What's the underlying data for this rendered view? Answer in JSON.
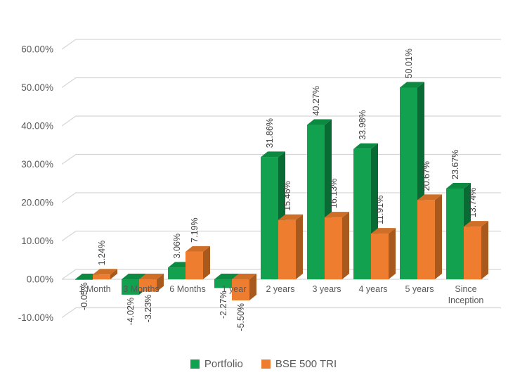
{
  "chart_data": {
    "type": "bar",
    "variant": "3d-clustered-column",
    "title": "",
    "xlabel": "",
    "ylabel": "",
    "categories": [
      "1 Month",
      "3 Months",
      "6 Months",
      "1 year",
      "2 years",
      "3 years",
      "4 years",
      "5 years",
      "Since Inception"
    ],
    "category_label_lines": [
      [
        "1 Month"
      ],
      [
        "3 Months"
      ],
      [
        "6 Months"
      ],
      [
        "1 year"
      ],
      [
        "2 years"
      ],
      [
        "3 years"
      ],
      [
        "4 years"
      ],
      [
        "5 years"
      ],
      [
        "Since",
        "Inception"
      ]
    ],
    "series": [
      {
        "name": "Portfolio",
        "color": "#12A14E",
        "color_top": "#0C8A42",
        "color_side": "#086B33",
        "values": [
          -0.05,
          -4.02,
          3.06,
          -2.27,
          31.86,
          40.27,
          33.98,
          50.01,
          23.67
        ],
        "labels": [
          "-0.05%",
          "-4.02%",
          "3.06%",
          "-2.27%",
          "31.86%",
          "40.27%",
          "33.98%",
          "50.01%",
          "23.67%"
        ]
      },
      {
        "name": "BSE 500 TRI",
        "color": "#EE7D2F",
        "color_top": "#CE6E27",
        "color_side": "#A85A1E",
        "values": [
          1.24,
          -3.23,
          7.19,
          -5.5,
          15.46,
          16.13,
          11.91,
          20.67,
          13.74
        ],
        "labels": [
          "1.24%",
          "-3.23%",
          "7.19%",
          "-5.50%",
          "15.46%",
          "16.13%",
          "11.91%",
          "20.67%",
          "13.74%"
        ]
      }
    ],
    "y_axis": {
      "min": -10,
      "max": 60,
      "step": 10,
      "tick_labels": [
        "60.00%",
        "50.00%",
        "40.00%",
        "30.00%",
        "20.00%",
        "10.00%",
        "0.00%",
        "-10.00%"
      ]
    },
    "grid": true,
    "legend": {
      "position": "bottom",
      "entries": [
        "Portfolio",
        "BSE 500 TRI"
      ]
    },
    "colors": {
      "grid": "#D6D6D6",
      "axis_text": "#595959",
      "data_label_text": "#404040",
      "background": "#FFFFFF"
    }
  }
}
